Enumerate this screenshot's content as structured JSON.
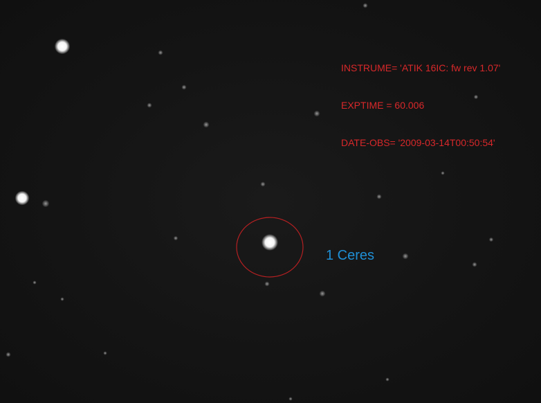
{
  "header": {
    "instrument_line": "INSTRUME= 'ATIK 16IC: fw rev 1.07'",
    "exptime_line": "EXPTIME = 60.006",
    "date_line": "DATE-OBS= '2009-03-14T00:50:54'"
  },
  "target": {
    "label": "1 Ceres"
  },
  "colors": {
    "header_text": "#d8282a",
    "label_text": "#1f8fd6",
    "circle": "#b52022",
    "background": "#141414"
  }
}
